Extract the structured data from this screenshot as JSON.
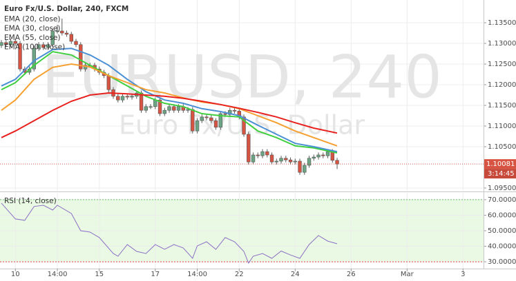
{
  "chart_data": [
    {
      "type": "candlestick",
      "title": "Euro Fx/U.S. Dollar, 240, FXCM",
      "watermark": "EURUSD, 240",
      "watermark_subtitle": "Euro Fx/U.S. Dollar",
      "up_color": "#6ba583",
      "down_color": "#d75442",
      "x": [
        0,
        1,
        2,
        3,
        4,
        5,
        6,
        7,
        8,
        9,
        10,
        11,
        12,
        13,
        14,
        15,
        16,
        17,
        18,
        19,
        20,
        21,
        22,
        23,
        24,
        25,
        26,
        27,
        28,
        29,
        30,
        31,
        32,
        33,
        34,
        35,
        36,
        37,
        38,
        39,
        40,
        41,
        42,
        43,
        44,
        45,
        46,
        47,
        48,
        49,
        50,
        51,
        52,
        53,
        54,
        55,
        56,
        57,
        58,
        59,
        60,
        61,
        62,
        63,
        64,
        65,
        66,
        67,
        68,
        69,
        70,
        71,
        72
      ],
      "open": [
        1.1295,
        1.1302,
        1.1297,
        1.1305,
        1.13,
        1.1238,
        1.123,
        1.1238,
        1.1288,
        1.1297,
        1.129,
        1.1297,
        1.133,
        1.133,
        1.1325,
        1.1322,
        1.1305,
        1.1297,
        1.1238,
        1.1247,
        1.1247,
        1.1238,
        1.123,
        1.1222,
        1.1188,
        1.1172,
        1.1163,
        1.1172,
        1.117,
        1.1172,
        1.118,
        1.1138,
        1.1147,
        1.1147,
        1.1163,
        1.113,
        1.1138,
        1.1147,
        1.1138,
        1.1147,
        1.1138,
        1.114,
        1.1088,
        1.1113,
        1.1122,
        1.112,
        1.1113,
        1.1097,
        1.113,
        1.1128,
        1.1138,
        1.1136,
        1.1122,
        1.108,
        1.1013,
        1.103,
        1.1028,
        1.1038,
        1.103,
        1.1013,
        1.1015,
        1.1022,
        1.1018,
        1.1013,
        1.1015,
        1.0988,
        1.1005,
        1.1022,
        1.1025,
        1.103,
        1.1028,
        1.1038,
        1.1017
      ],
      "high": [
        1.1308,
        1.1308,
        1.1311,
        1.1311,
        1.1306,
        1.1244,
        1.1244,
        1.1294,
        1.1303,
        1.1303,
        1.1303,
        1.1336,
        1.1345,
        1.136,
        1.1331,
        1.1328,
        1.1311,
        1.1303,
        1.1253,
        1.1253,
        1.1253,
        1.1244,
        1.1236,
        1.1228,
        1.1194,
        1.1178,
        1.1178,
        1.1178,
        1.1178,
        1.1186,
        1.1186,
        1.1153,
        1.1153,
        1.1169,
        1.1169,
        1.1144,
        1.1153,
        1.1153,
        1.1153,
        1.1153,
        1.1146,
        1.1146,
        1.1119,
        1.1128,
        1.1128,
        1.1126,
        1.1119,
        1.1136,
        1.1136,
        1.1144,
        1.1144,
        1.1142,
        1.1128,
        1.1086,
        1.1036,
        1.1036,
        1.1044,
        1.1044,
        1.1036,
        1.1021,
        1.1028,
        1.1028,
        1.1024,
        1.1021,
        1.1021,
        1.1011,
        1.1028,
        1.1031,
        1.1036,
        1.1036,
        1.1044,
        1.1044,
        1.1023
      ],
      "low": [
        1.1289,
        1.1291,
        1.1291,
        1.1294,
        1.1232,
        1.1224,
        1.1224,
        1.1232,
        1.1282,
        1.1284,
        1.1284,
        1.1291,
        1.1324,
        1.1319,
        1.1316,
        1.1299,
        1.1291,
        1.1232,
        1.1232,
        1.1241,
        1.1232,
        1.1224,
        1.1216,
        1.1182,
        1.1166,
        1.1157,
        1.1157,
        1.1164,
        1.1164,
        1.1166,
        1.1132,
        1.1132,
        1.1141,
        1.1141,
        1.1124,
        1.1124,
        1.1132,
        1.1132,
        1.1132,
        1.1132,
        1.1132,
        1.1082,
        1.1082,
        1.1107,
        1.1114,
        1.1107,
        1.1091,
        1.1091,
        1.1122,
        1.1122,
        1.113,
        1.1116,
        1.1074,
        1.1007,
        1.1007,
        1.1022,
        1.1022,
        1.1024,
        1.1007,
        1.1007,
        1.1009,
        1.1012,
        1.1007,
        1.1007,
        1.0982,
        1.0982,
        1.0999,
        1.1016,
        1.1019,
        1.1022,
        1.1022,
        1.1011,
        1.0996
      ],
      "close": [
        1.1302,
        1.1297,
        1.1305,
        1.13,
        1.1238,
        1.123,
        1.1238,
        1.1288,
        1.1297,
        1.129,
        1.1297,
        1.133,
        1.133,
        1.1325,
        1.1322,
        1.1305,
        1.1297,
        1.1238,
        1.1247,
        1.1247,
        1.1238,
        1.123,
        1.1222,
        1.1188,
        1.1172,
        1.1163,
        1.1172,
        1.117,
        1.1172,
        1.118,
        1.1138,
        1.1147,
        1.1147,
        1.1163,
        1.113,
        1.1138,
        1.1147,
        1.1138,
        1.1147,
        1.1138,
        1.114,
        1.1088,
        1.1113,
        1.1122,
        1.112,
        1.1113,
        1.1097,
        1.113,
        1.1128,
        1.1138,
        1.1136,
        1.1122,
        1.108,
        1.1013,
        1.103,
        1.1028,
        1.1038,
        1.103,
        1.1013,
        1.1015,
        1.1022,
        1.1018,
        1.1013,
        1.1015,
        1.0988,
        1.1005,
        1.1022,
        1.1025,
        1.103,
        1.1028,
        1.1038,
        1.1017,
        1.10081
      ],
      "countdown": "3:14:45",
      "series": [
        {
          "name": "EMA (20, close)",
          "color": "#3fcf3f",
          "x": [
            0,
            3,
            7,
            11,
            15,
            19,
            23,
            27,
            31,
            35,
            39,
            43,
            47,
            51,
            55,
            59,
            63,
            67,
            72
          ],
          "values": [
            1.1188,
            1.1205,
            1.1247,
            1.128,
            1.1272,
            1.1247,
            1.1222,
            1.1197,
            1.1172,
            1.1155,
            1.1147,
            1.113,
            1.1125,
            1.1122,
            1.1088,
            1.1072,
            1.1052,
            1.1047,
            1.1035
          ]
        },
        {
          "name": "EMA (30, close)",
          "color": "#4a8fd4",
          "x": [
            0,
            3,
            7,
            11,
            15,
            19,
            23,
            27,
            31,
            35,
            39,
            43,
            47,
            51,
            55,
            59,
            63,
            67,
            72
          ],
          "values": [
            1.1197,
            1.1213,
            1.1258,
            1.1285,
            1.1288,
            1.1272,
            1.1247,
            1.1213,
            1.1183,
            1.1163,
            1.1155,
            1.1142,
            1.1135,
            1.1125,
            1.1102,
            1.108,
            1.1058,
            1.105,
            1.1038
          ]
        },
        {
          "name": "EMA (55, close)",
          "color": "#f5a030",
          "x": [
            0,
            3,
            7,
            11,
            15,
            19,
            23,
            27,
            31,
            35,
            39,
            43,
            47,
            51,
            55,
            59,
            63,
            67,
            72
          ],
          "values": [
            1.1138,
            1.1163,
            1.1213,
            1.1242,
            1.125,
            1.1243,
            1.1222,
            1.1205,
            1.1188,
            1.118,
            1.1168,
            1.1158,
            1.1152,
            1.1142,
            1.1125,
            1.1108,
            1.1088,
            1.1072,
            1.1052
          ]
        },
        {
          "name": "EMA (100, close)",
          "color": "#e8201e",
          "x": [
            0,
            3,
            7,
            11,
            15,
            19,
            23,
            27,
            31,
            35,
            39,
            43,
            47,
            51,
            55,
            59,
            63,
            67,
            72
          ],
          "values": [
            1.1072,
            1.1088,
            1.1113,
            1.1138,
            1.116,
            1.1175,
            1.118,
            1.1178,
            1.1175,
            1.1172,
            1.1167,
            1.116,
            1.1152,
            1.1143,
            1.1133,
            1.1122,
            1.1108,
            1.1095,
            1.1083
          ]
        }
      ],
      "xlim": [
        -0.3,
        103.4
      ],
      "xticks": [
        {
          "value": 3,
          "label": "10"
        },
        {
          "value": 12,
          "label": "14:00"
        },
        {
          "value": 21,
          "label": "15"
        },
        {
          "value": 33,
          "label": "17"
        },
        {
          "value": 42,
          "label": "14:00"
        },
        {
          "value": 51,
          "label": "22"
        },
        {
          "value": 63,
          "label": "24"
        },
        {
          "value": 75,
          "label": "26"
        },
        {
          "value": 87,
          "label": "Mar"
        },
        {
          "value": 99,
          "label": "3"
        }
      ],
      "ylim": [
        1.09433,
        1.1405
      ],
      "yticks": [
        {
          "value": 1.095,
          "label": "1.09500"
        },
        {
          "value": 1.105,
          "label": "1.10500"
        },
        {
          "value": 1.11,
          "label": "1.11000"
        },
        {
          "value": 1.115,
          "label": "1.11500"
        },
        {
          "value": 1.12,
          "label": "1.12000"
        },
        {
          "value": 1.125,
          "label": "1.12500"
        },
        {
          "value": 1.13,
          "label": "1.13000"
        },
        {
          "value": 1.135,
          "label": "1.13500"
        }
      ],
      "grid": true
    },
    {
      "type": "line",
      "title": "RSI (14, close)",
      "color": "#8c6fc4",
      "x": [
        0,
        3,
        5,
        7,
        9,
        11,
        12,
        15,
        17,
        19,
        21,
        24,
        25,
        27,
        29,
        31,
        33,
        35,
        37,
        39,
        41,
        42,
        44,
        46,
        48,
        50,
        52,
        53,
        54,
        56,
        58,
        60,
        62,
        64,
        66,
        68,
        70,
        72
      ],
      "values": [
        67.8,
        57.6,
        56.7,
        65.6,
        66.4,
        63.3,
        66.4,
        61.1,
        50.0,
        49.1,
        45.6,
        35.3,
        33.6,
        41.1,
        36.7,
        35.3,
        41.1,
        38.0,
        41.1,
        38.9,
        32.2,
        40.2,
        42.9,
        38.0,
        45.6,
        42.9,
        36.7,
        29.1,
        33.6,
        35.3,
        32.2,
        36.9,
        34.4,
        32.2,
        41.1,
        46.9,
        43.3,
        41.6
      ],
      "band": [
        30,
        70
      ],
      "ylim": [
        25.6,
        74.4
      ],
      "yticks": [
        {
          "value": 30,
          "label": "30.0000"
        },
        {
          "value": 40,
          "label": "40.0000"
        },
        {
          "value": 50,
          "label": "50.0000"
        },
        {
          "value": 60,
          "label": "60.0000"
        },
        {
          "value": 70,
          "label": "70.0000"
        }
      ],
      "grid": true
    }
  ]
}
